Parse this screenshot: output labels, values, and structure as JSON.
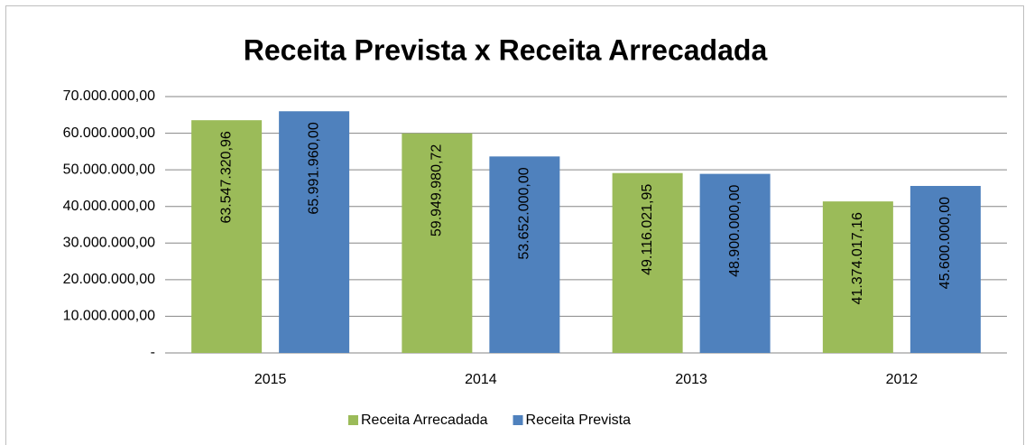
{
  "chart_data": {
    "type": "bar",
    "title": "Receita Prevista x Receita Arrecadada",
    "categories": [
      "2015",
      "2014",
      "2013",
      "2012"
    ],
    "series": [
      {
        "name": "Receita Arrecadada",
        "color": "#9bbb59",
        "values": [
          63547320.96,
          59949980.72,
          49116021.95,
          41374017.16
        ],
        "value_labels": [
          "63.547.320,96",
          "59.949.980,72",
          "49.116.021,95",
          "41.374.017,16"
        ]
      },
      {
        "name": "Receita Prevista",
        "color": "#4f81bd",
        "values": [
          65991960.0,
          53652000.0,
          48900000.0,
          45600000.0
        ],
        "value_labels": [
          "65.991.960,00",
          "53.652.000,00",
          "48.900.000,00",
          "45.600.000,00"
        ]
      }
    ],
    "ylim": [
      0,
      70000000
    ],
    "yticks": [
      {
        "value": 0,
        "label": "-"
      },
      {
        "value": 10000000,
        "label": "10.000.000,00"
      },
      {
        "value": 20000000,
        "label": "20.000.000,00"
      },
      {
        "value": 30000000,
        "label": "30.000.000,00"
      },
      {
        "value": 40000000,
        "label": "40.000.000,00"
      },
      {
        "value": 50000000,
        "label": "50.000.000,00"
      },
      {
        "value": 60000000,
        "label": "60.000.000,00"
      },
      {
        "value": 70000000,
        "label": "70.000.000,00"
      }
    ],
    "grid": true,
    "legend": "bottom"
  }
}
